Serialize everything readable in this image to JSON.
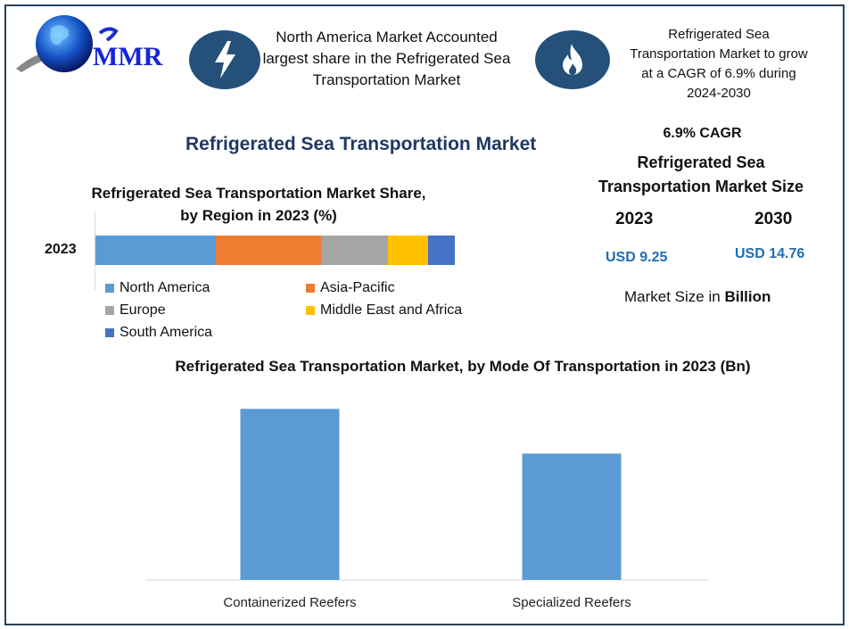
{
  "logo": {
    "text": "MMR"
  },
  "header": {
    "callout1": {
      "icon": "lightning-icon",
      "text": "North America Market Accounted largest share in the Refrigerated Sea Transportation Market"
    },
    "callout2": {
      "icon": "flame-icon",
      "text": "Refrigerated Sea Transportation Market to grow at a CAGR of 6.9% during 2024-2030"
    }
  },
  "main_title": "Refrigerated Sea Transportation Market",
  "stats": {
    "cagr": "6.9% CAGR",
    "title": "Refrigerated Sea Transportation Market Size",
    "year1": "2023",
    "year2": "2030",
    "value1": "USD 9.25",
    "value2": "USD 14.76",
    "unit_prefix": "Market Size in ",
    "unit_bold": "Billion",
    "value_color": "#1f6fb2"
  },
  "chart_data": [
    {
      "type": "bar",
      "orientation": "horizontal-stacked",
      "title": "Refrigerated Sea Transportation Market Share, by Region in 2023 (%)",
      "categories": [
        "2023"
      ],
      "series": [
        {
          "name": "North America",
          "values": [
            33.5
          ],
          "color": "#5b9bd5"
        },
        {
          "name": "Asia-Pacific",
          "values": [
            29.3
          ],
          "color": "#ed7d31"
        },
        {
          "name": "Europe",
          "values": [
            18.6
          ],
          "color": "#a5a5a5"
        },
        {
          "name": "Middle East and Africa",
          "values": [
            11.2
          ],
          "color": "#ffc000"
        },
        {
          "name": "South America",
          "values": [
            7.4
          ],
          "color": "#4472c4"
        }
      ],
      "legend": "bottom"
    },
    {
      "type": "bar",
      "title": "Refrigerated Sea Transportation Market, by Mode Of Transportation in 2023 (Bn)",
      "categories": [
        "Containerized Reefers",
        "Specialized Reefers"
      ],
      "values": [
        5.32,
        3.93
      ],
      "color": "#5b9bd5",
      "ylim": [
        0,
        5.8
      ],
      "grid": false
    }
  ]
}
